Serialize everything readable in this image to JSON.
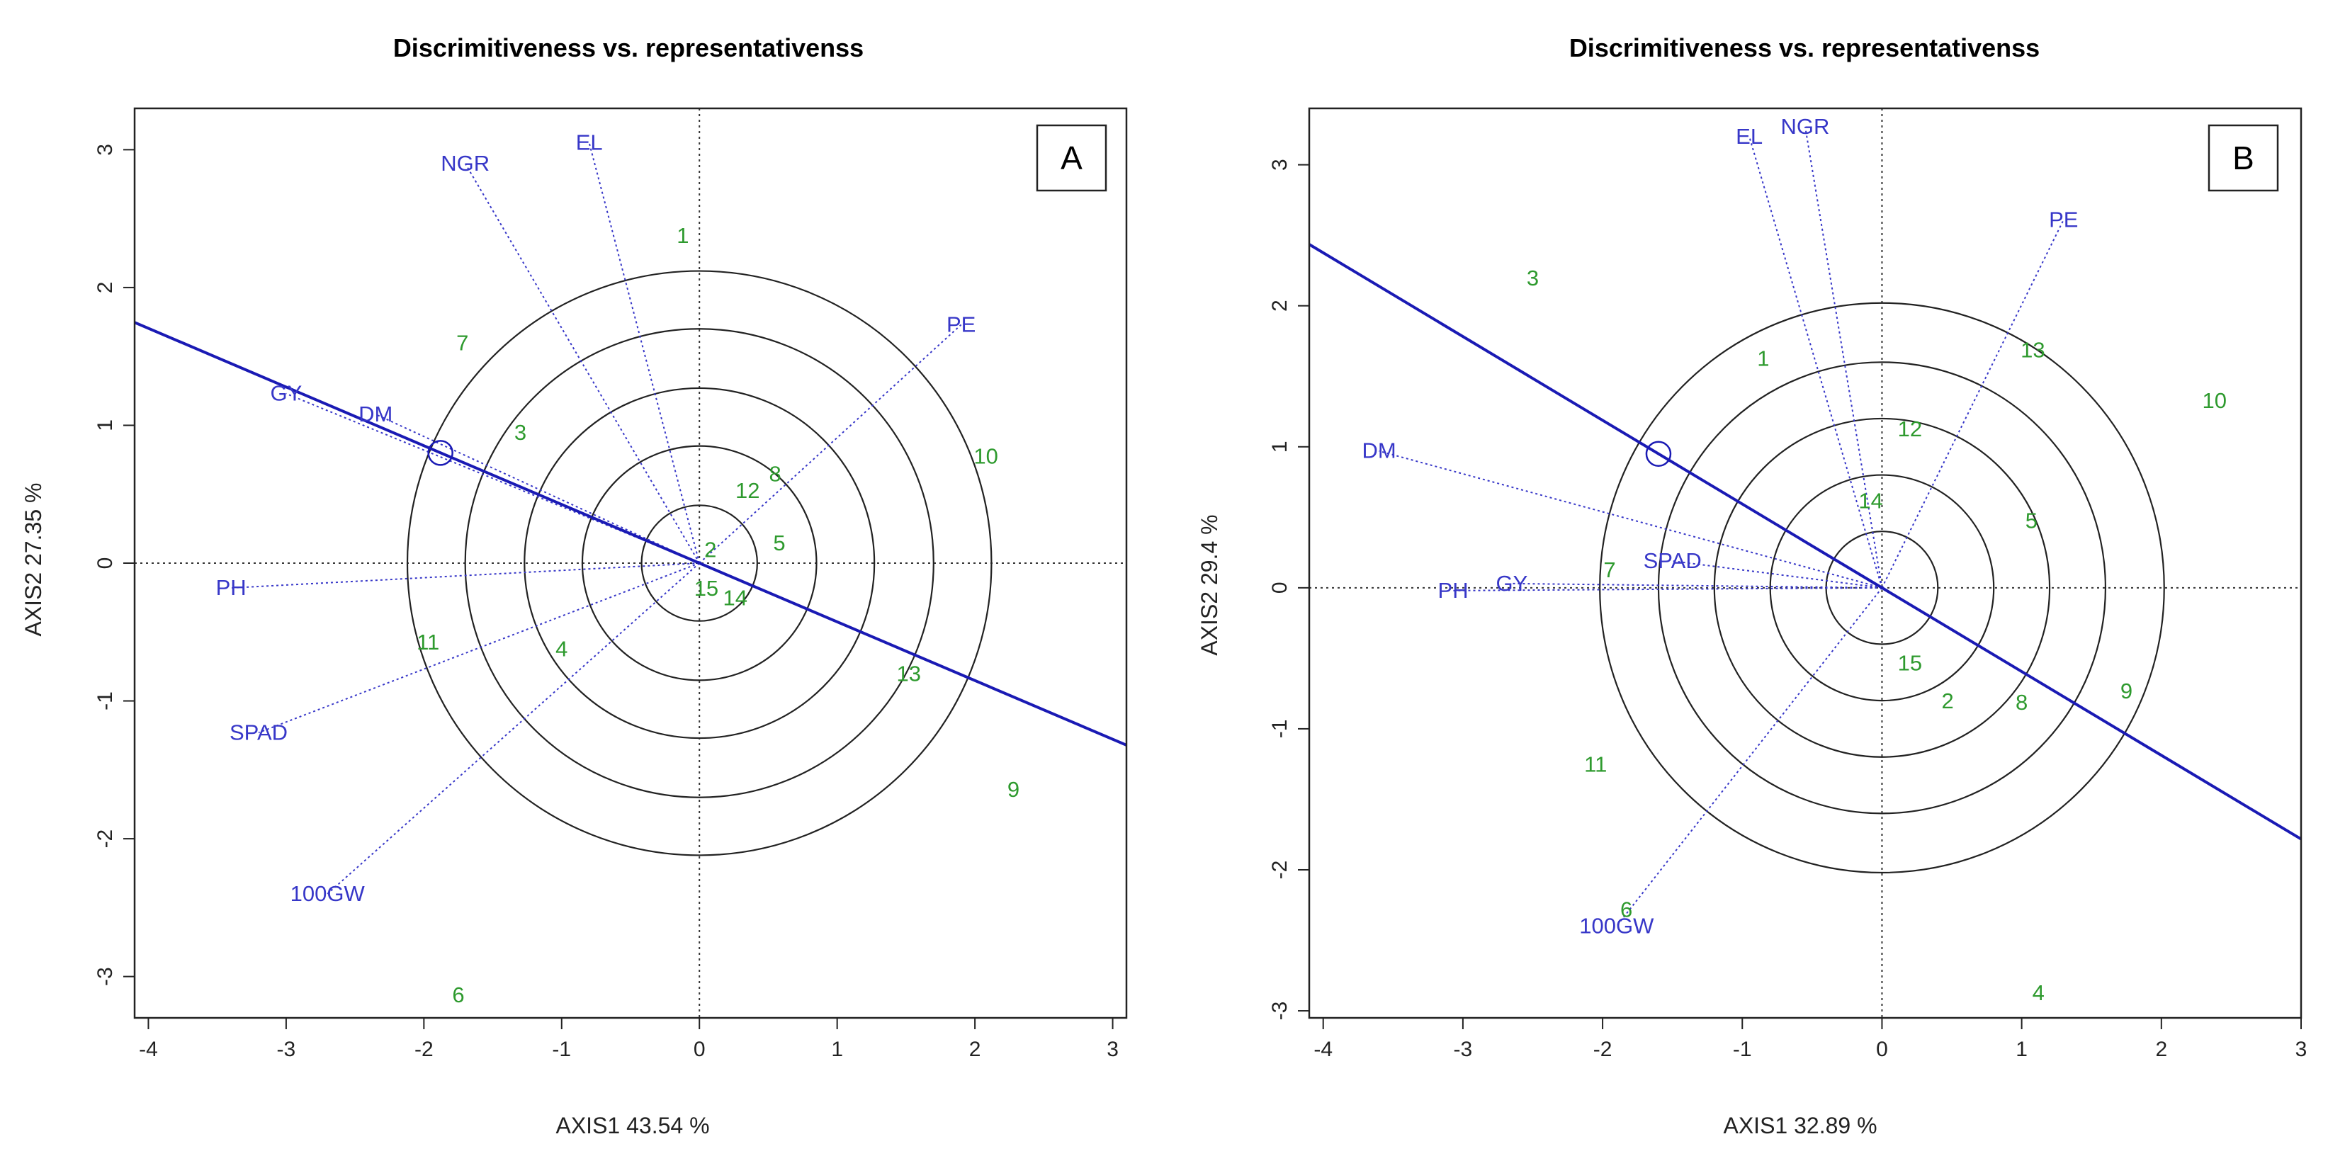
{
  "colors": {
    "trait": "#3737c8",
    "genotype": "#2e9a2e",
    "axisLine": "#1a1ab4",
    "circle": "#222222"
  },
  "chart_data": [
    {
      "type": "scatter",
      "panel": "A",
      "title": "Discrimitiveness vs. representativenss",
      "xlabel": "AXIS1 43.54 %",
      "ylabel": "AXIS2 27.35 %",
      "xlim": [
        -4.1,
        3.1
      ],
      "ylim": [
        -3.3,
        3.3
      ],
      "xticks": [
        "-4",
        "-3",
        "-2",
        "-1",
        "0",
        "1",
        "2",
        "3"
      ],
      "xtick_values": [
        -4,
        -3,
        -2,
        -1,
        0,
        1,
        2,
        3
      ],
      "yticks": [
        "-3",
        "-2",
        "-1",
        "0",
        "1",
        "2",
        "3"
      ],
      "ytick_values": [
        -3,
        -2,
        -1,
        0,
        1,
        2,
        3
      ],
      "circle_radii": [
        0.42,
        0.85,
        1.27,
        1.7,
        2.12
      ],
      "aec_circle": [
        -1.88,
        0.8
      ],
      "aec_slope": -0.426,
      "traits": [
        {
          "label": "NGR",
          "x": -1.7,
          "y": 2.9
        },
        {
          "label": "EL",
          "x": -0.8,
          "y": 3.05
        },
        {
          "label": "PE",
          "x": 1.9,
          "y": 1.73
        },
        {
          "label": "GY",
          "x": -3.0,
          "y": 1.23
        },
        {
          "label": "DM",
          "x": -2.35,
          "y": 1.08
        },
        {
          "label": "PH",
          "x": -3.4,
          "y": -0.18
        },
        {
          "label": "SPAD",
          "x": -3.2,
          "y": -1.23
        },
        {
          "label": "100GW",
          "x": -2.7,
          "y": -2.4
        }
      ],
      "genotypes": [
        {
          "label": "1",
          "x": -0.12,
          "y": 2.38
        },
        {
          "label": "2",
          "x": 0.08,
          "y": 0.1
        },
        {
          "label": "3",
          "x": -1.3,
          "y": 0.95
        },
        {
          "label": "4",
          "x": -1.0,
          "y": -0.62
        },
        {
          "label": "5",
          "x": 0.58,
          "y": 0.15
        },
        {
          "label": "6",
          "x": -1.75,
          "y": -3.13
        },
        {
          "label": "7",
          "x": -1.72,
          "y": 1.6
        },
        {
          "label": "8",
          "x": 0.55,
          "y": 0.65
        },
        {
          "label": "9",
          "x": 2.28,
          "y": -1.64
        },
        {
          "label": "10",
          "x": 2.08,
          "y": 0.78
        },
        {
          "label": "11",
          "x": -1.97,
          "y": -0.57
        },
        {
          "label": "12",
          "x": 0.35,
          "y": 0.53
        },
        {
          "label": "13",
          "x": 1.52,
          "y": -0.8
        },
        {
          "label": "14",
          "x": 0.26,
          "y": -0.25
        },
        {
          "label": "15",
          "x": 0.05,
          "y": -0.18
        }
      ]
    },
    {
      "type": "scatter",
      "panel": "B",
      "title": "Discrimitiveness vs. representativenss",
      "xlabel": "AXIS1 32.89 %",
      "ylabel": "AXIS2 29.4 %",
      "xlim": [
        -4.1,
        3.0
      ],
      "ylim": [
        -3.05,
        3.4
      ],
      "xticks": [
        "-4",
        "-3",
        "-2",
        "-1",
        "0",
        "1",
        "2",
        "3"
      ],
      "xtick_values": [
        -4,
        -3,
        -2,
        -1,
        0,
        1,
        2,
        3
      ],
      "yticks": [
        "-3",
        "-2",
        "-1",
        "0",
        "1",
        "2",
        "3"
      ],
      "ytick_values": [
        -3,
        -2,
        -1,
        0,
        1,
        2,
        3
      ],
      "circle_radii": [
        0.4,
        0.8,
        1.2,
        1.6,
        2.02
      ],
      "aec_circle": [
        -1.6,
        0.95
      ],
      "aec_slope": -0.594,
      "traits": [
        {
          "label": "EL",
          "x": -0.95,
          "y": 3.2
        },
        {
          "label": "NGR",
          "x": -0.55,
          "y": 3.27
        },
        {
          "label": "PE",
          "x": 1.3,
          "y": 2.61
        },
        {
          "label": "DM",
          "x": -3.6,
          "y": 0.97
        },
        {
          "label": "SPAD",
          "x": -1.5,
          "y": 0.19
        },
        {
          "label": "GY",
          "x": -2.65,
          "y": 0.03
        },
        {
          "label": "PH",
          "x": -3.07,
          "y": -0.02
        },
        {
          "label": "100GW",
          "x": -1.9,
          "y": -2.4
        }
      ],
      "genotypes": [
        {
          "label": "1",
          "x": -0.85,
          "y": 1.63
        },
        {
          "label": "2",
          "x": 0.47,
          "y": -0.8
        },
        {
          "label": "3",
          "x": -2.5,
          "y": 2.2
        },
        {
          "label": "4",
          "x": 1.12,
          "y": -2.87
        },
        {
          "label": "5",
          "x": 1.07,
          "y": 0.48
        },
        {
          "label": "6",
          "x": -1.83,
          "y": -2.28
        },
        {
          "label": "7",
          "x": -1.95,
          "y": 0.13
        },
        {
          "label": "8",
          "x": 1.0,
          "y": -0.81
        },
        {
          "label": "9",
          "x": 1.75,
          "y": -0.73
        },
        {
          "label": "10",
          "x": 2.38,
          "y": 1.33
        },
        {
          "label": "11",
          "x": -2.05,
          "y": -1.25
        },
        {
          "label": "12",
          "x": 0.2,
          "y": 1.13
        },
        {
          "label": "13",
          "x": 1.08,
          "y": 1.69
        },
        {
          "label": "14",
          "x": -0.08,
          "y": 0.62
        },
        {
          "label": "15",
          "x": 0.2,
          "y": -0.53
        }
      ]
    }
  ]
}
